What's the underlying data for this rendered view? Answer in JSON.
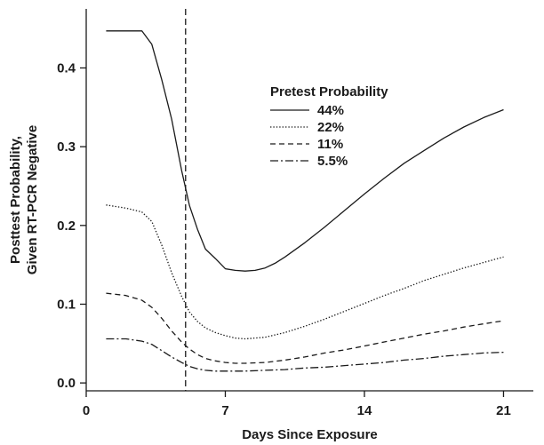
{
  "chart_data": {
    "type": "line",
    "title": "",
    "xlabel": "Days Since Exposure",
    "ylabel": [
      "Posttest Probability,",
      "Given RT-PCR Negative"
    ],
    "xlim": [
      0,
      22.5
    ],
    "ylim": [
      -0.01,
      0.475
    ],
    "xticks": [
      0,
      7,
      14,
      21
    ],
    "yticks": [
      0.0,
      0.1,
      0.2,
      0.3,
      0.4
    ],
    "ytick_labels": [
      "0.0",
      "0.1",
      "0.2",
      "0.3",
      "0.4"
    ],
    "grid": false,
    "legend": {
      "title": "Pretest Probability",
      "position": "upper-middle"
    },
    "reference_line": {
      "x": 5,
      "style": "dashed"
    },
    "series": [
      {
        "name": "44%",
        "style": "solid",
        "x": [
          1,
          2,
          2.8,
          3.3,
          3.8,
          4.3,
          4.8,
          5.2,
          5.6,
          6,
          6.5,
          7,
          7.5,
          8,
          8.5,
          9,
          9.5,
          10,
          11,
          12,
          13,
          14,
          15,
          16,
          17,
          18,
          19,
          20,
          21
        ],
        "y": [
          0.447,
          0.447,
          0.447,
          0.43,
          0.385,
          0.335,
          0.27,
          0.225,
          0.195,
          0.17,
          0.158,
          0.145,
          0.143,
          0.142,
          0.143,
          0.146,
          0.152,
          0.16,
          0.178,
          0.198,
          0.219,
          0.24,
          0.26,
          0.279,
          0.295,
          0.311,
          0.325,
          0.337,
          0.347
        ]
      },
      {
        "name": "22%",
        "style": "dotted",
        "x": [
          1,
          2,
          2.8,
          3.3,
          3.8,
          4.3,
          4.8,
          5.2,
          5.6,
          6,
          6.5,
          7,
          7.5,
          8,
          8.5,
          9,
          10,
          11,
          12,
          13,
          14,
          15,
          16,
          17,
          18,
          19,
          20,
          21
        ],
        "y": [
          0.226,
          0.222,
          0.217,
          0.205,
          0.175,
          0.14,
          0.11,
          0.09,
          0.078,
          0.07,
          0.064,
          0.06,
          0.057,
          0.056,
          0.057,
          0.058,
          0.064,
          0.072,
          0.081,
          0.091,
          0.101,
          0.111,
          0.12,
          0.13,
          0.138,
          0.146,
          0.153,
          0.16
        ]
      },
      {
        "name": "11%",
        "style": "dashed",
        "x": [
          1,
          2,
          2.8,
          3.3,
          3.8,
          4.3,
          4.8,
          5.2,
          5.6,
          6,
          6.5,
          7,
          7.5,
          8,
          9,
          10,
          11,
          12,
          13,
          14,
          15,
          16,
          17,
          18,
          19,
          20,
          21
        ],
        "y": [
          0.114,
          0.111,
          0.105,
          0.096,
          0.082,
          0.066,
          0.052,
          0.043,
          0.036,
          0.031,
          0.028,
          0.026,
          0.025,
          0.025,
          0.026,
          0.029,
          0.033,
          0.038,
          0.042,
          0.047,
          0.052,
          0.057,
          0.062,
          0.066,
          0.071,
          0.075,
          0.079
        ]
      },
      {
        "name": "5.5%",
        "style": "dashdot",
        "x": [
          1,
          2,
          2.8,
          3.3,
          3.8,
          4.3,
          4.8,
          5.2,
          5.6,
          6,
          6.5,
          7,
          7.5,
          8,
          9,
          10,
          11,
          12,
          13,
          14,
          15,
          16,
          17,
          18,
          19,
          20,
          21
        ],
        "y": [
          0.056,
          0.056,
          0.053,
          0.049,
          0.041,
          0.033,
          0.026,
          0.021,
          0.018,
          0.016,
          0.015,
          0.015,
          0.015,
          0.015,
          0.016,
          0.017,
          0.019,
          0.02,
          0.022,
          0.024,
          0.026,
          0.029,
          0.031,
          0.034,
          0.036,
          0.038,
          0.039
        ]
      }
    ]
  }
}
